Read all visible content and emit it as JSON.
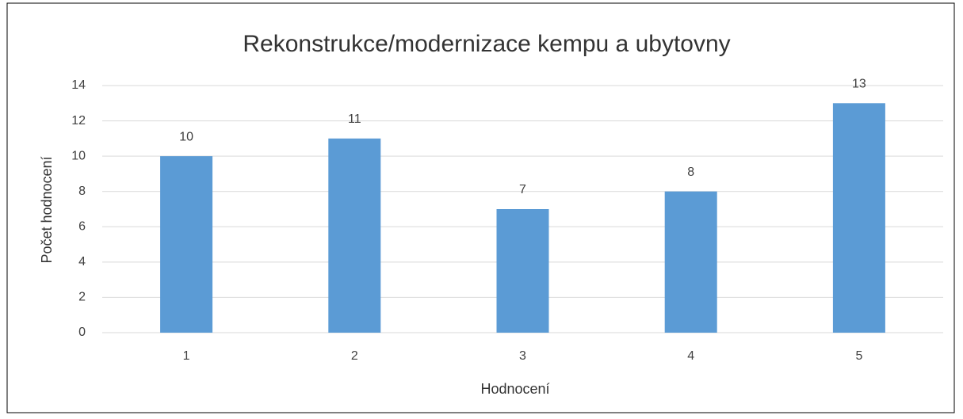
{
  "chart_data": {
    "type": "bar",
    "title": "Rekonstrukce/modernizace kempu a ubytovny",
    "x_label": "Hodnocení",
    "y_label": "Počet hodnocení",
    "categories": [
      "1",
      "2",
      "3",
      "4",
      "5"
    ],
    "values": [
      10,
      11,
      7,
      8,
      13
    ],
    "color": "#5b9bd5",
    "ylim": [
      0,
      14
    ],
    "yticks": [
      0,
      2,
      4,
      6,
      8,
      10,
      12,
      14
    ],
    "grid": true
  }
}
